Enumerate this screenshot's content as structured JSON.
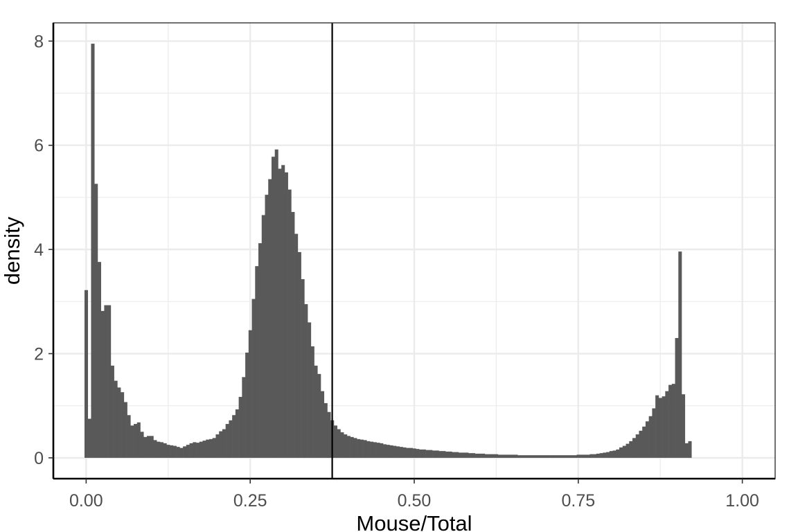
{
  "chart_data": {
    "type": "histogram",
    "title": "",
    "xlabel": "Mouse/Total",
    "ylabel": "density",
    "xlim": [
      -0.05,
      1.05
    ],
    "ylim": [
      -0.4,
      8.35
    ],
    "x_ticks": [
      0.0,
      0.25,
      0.5,
      0.75,
      1.0
    ],
    "x_tick_labels": [
      "0.00",
      "0.25",
      "0.50",
      "0.75",
      "1.00"
    ],
    "y_ticks": [
      0,
      2,
      4,
      6,
      8
    ],
    "y_tick_labels": [
      "0",
      "2",
      "4",
      "6",
      "8"
    ],
    "grid": true,
    "theme": "bw",
    "bin_width": 0.005,
    "bin_start": -0.0025,
    "bar_color": "#595959",
    "vline": {
      "x": 0.375,
      "color": "#000000"
    },
    "values": [
      3.22,
      0.75,
      7.95,
      5.26,
      3.76,
      2.82,
      2.93,
      2.93,
      1.77,
      1.48,
      1.35,
      1.26,
      1.07,
      0.82,
      0.62,
      0.65,
      0.68,
      0.5,
      0.4,
      0.42,
      0.42,
      0.34,
      0.31,
      0.3,
      0.28,
      0.25,
      0.24,
      0.23,
      0.21,
      0.19,
      0.22,
      0.25,
      0.28,
      0.3,
      0.29,
      0.31,
      0.33,
      0.35,
      0.36,
      0.38,
      0.45,
      0.51,
      0.55,
      0.65,
      0.72,
      0.82,
      0.93,
      1.17,
      1.55,
      2.02,
      2.45,
      3.05,
      3.68,
      4.12,
      4.66,
      5.05,
      5.35,
      5.78,
      5.92,
      5.55,
      5.62,
      5.48,
      5.15,
      4.72,
      4.3,
      3.95,
      3.43,
      2.95,
      2.6,
      2.14,
      1.77,
      1.61,
      1.28,
      1.05,
      0.88,
      0.72,
      0.62,
      0.55,
      0.49,
      0.45,
      0.42,
      0.4,
      0.38,
      0.36,
      0.35,
      0.34,
      0.32,
      0.31,
      0.3,
      0.29,
      0.28,
      0.26,
      0.25,
      0.24,
      0.23,
      0.22,
      0.21,
      0.2,
      0.19,
      0.19,
      0.18,
      0.17,
      0.16,
      0.16,
      0.15,
      0.15,
      0.14,
      0.14,
      0.13,
      0.13,
      0.12,
      0.12,
      0.11,
      0.11,
      0.1,
      0.1,
      0.1,
      0.09,
      0.09,
      0.08,
      0.08,
      0.08,
      0.07,
      0.07,
      0.07,
      0.07,
      0.06,
      0.06,
      0.06,
      0.06,
      0.06,
      0.06,
      0.05,
      0.05,
      0.05,
      0.05,
      0.05,
      0.05,
      0.05,
      0.05,
      0.05,
      0.05,
      0.05,
      0.05,
      0.05,
      0.05,
      0.05,
      0.05,
      0.05,
      0.05,
      0.06,
      0.06,
      0.06,
      0.06,
      0.07,
      0.07,
      0.08,
      0.09,
      0.1,
      0.11,
      0.13,
      0.14,
      0.16,
      0.2,
      0.23,
      0.27,
      0.32,
      0.38,
      0.45,
      0.52,
      0.6,
      0.7,
      0.8,
      0.95,
      1.2,
      1.15,
      1.18,
      1.28,
      1.4,
      1.42,
      2.3,
      3.96,
      1.22,
      0.28,
      0.32
    ]
  }
}
